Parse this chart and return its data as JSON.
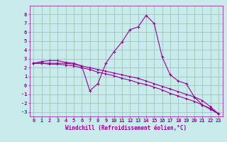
{
  "xlabel": "Windchill (Refroidissement éolien,°C)",
  "background_color": "#c8ecec",
  "line_color": "#990099",
  "grid_color": "#aaccaa",
  "x_values": [
    0,
    1,
    2,
    3,
    4,
    5,
    6,
    7,
    8,
    9,
    10,
    11,
    12,
    13,
    14,
    15,
    16,
    17,
    18,
    19,
    20,
    21,
    22,
    23
  ],
  "line1_y": [
    2.5,
    2.7,
    2.8,
    2.8,
    2.6,
    2.5,
    2.2,
    -0.6,
    0.2,
    2.5,
    3.8,
    4.9,
    6.3,
    6.6,
    7.9,
    7.0,
    3.2,
    1.2,
    0.5,
    0.2,
    -1.3,
    -2.2,
    -2.6,
    -3.2
  ],
  "line2_y": [
    2.5,
    2.5,
    2.5,
    2.5,
    2.5,
    2.4,
    2.2,
    2.0,
    1.8,
    1.6,
    1.4,
    1.2,
    1.0,
    0.8,
    0.5,
    0.2,
    -0.1,
    -0.4,
    -0.7,
    -1.0,
    -1.3,
    -1.7,
    -2.4,
    -3.2
  ],
  "line3_y": [
    2.5,
    2.5,
    2.4,
    2.4,
    2.3,
    2.2,
    2.0,
    1.8,
    1.5,
    1.3,
    1.1,
    0.8,
    0.6,
    0.3,
    0.1,
    -0.2,
    -0.5,
    -0.9,
    -1.2,
    -1.5,
    -1.8,
    -2.2,
    -2.7,
    -3.2
  ],
  "ylim": [
    -3.5,
    9.0
  ],
  "xlim": [
    -0.5,
    23.5
  ],
  "yticks": [
    -3,
    -2,
    -1,
    0,
    1,
    2,
    3,
    4,
    5,
    6,
    7,
    8
  ],
  "xticks": [
    0,
    1,
    2,
    3,
    4,
    5,
    6,
    7,
    8,
    9,
    10,
    11,
    12,
    13,
    14,
    15,
    16,
    17,
    18,
    19,
    20,
    21,
    22,
    23
  ],
  "tick_fontsize": 5.0,
  "xlabel_fontsize": 5.5,
  "lw": 0.8,
  "marker_size": 2.5
}
